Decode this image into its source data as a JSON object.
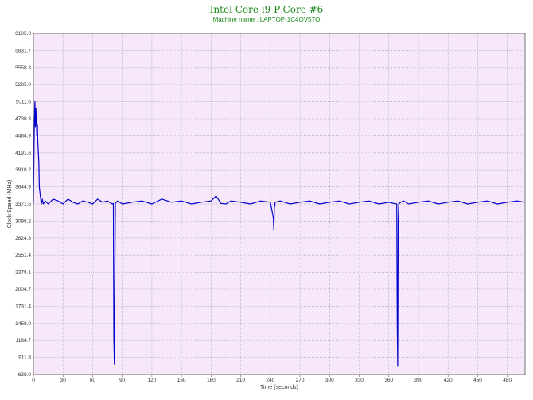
{
  "colors": {
    "plot_bg": "#f7e7fb",
    "grid": "#a0a0a0",
    "line": "#0000cc",
    "title": "#1a8a1a"
  },
  "chart_data": {
    "type": "line",
    "title": "Intel Core i9 P-Core #6",
    "subtitle": "Machine name : LAPTOP-1C4OV5TO",
    "xlabel": "Time (seconds)",
    "ylabel": "Clock Speed (MHz)",
    "xlim": [
      0,
      498
    ],
    "ylim": [
      638.0,
      6105.0
    ],
    "grid": true,
    "legend": "none",
    "x_ticks": [
      "0",
      "30",
      "60",
      "90",
      "120",
      "150",
      "180",
      "210",
      "240",
      "270",
      "300",
      "330",
      "360",
      "390",
      "420",
      "450",
      "480"
    ],
    "y_ticks": [
      "638.0",
      "911.3",
      "1184.7",
      "1458.0",
      "1731.4",
      "2004.7",
      "2278.1",
      "2551.4",
      "2824.8",
      "3098.2",
      "3371.5",
      "3644.9",
      "3918.2",
      "4191.6",
      "4464.9",
      "4738.3",
      "5011.6",
      "5285.0",
      "5558.3",
      "5831.7",
      "6105.0"
    ],
    "series": [
      {
        "values_desc": "clock speed over time",
        "x": [
          0,
          1,
          1.5,
          2,
          2.5,
          3,
          3.5,
          4,
          4.5,
          5,
          5.5,
          6,
          7,
          8,
          9,
          10,
          12,
          15,
          20,
          25,
          30,
          35,
          40,
          45,
          50,
          55,
          60,
          65,
          70,
          75,
          80,
          81,
          81.5,
          82,
          82.5,
          83,
          84,
          85,
          90,
          100,
          110,
          120,
          130,
          140,
          150,
          160,
          170,
          180,
          185,
          190,
          195,
          200,
          210,
          220,
          230,
          240,
          243,
          243.5,
          244,
          245,
          250,
          260,
          270,
          280,
          290,
          300,
          310,
          320,
          330,
          340,
          350,
          360,
          365,
          368,
          368.5,
          369,
          369.5,
          370,
          372,
          375,
          380,
          390,
          400,
          410,
          420,
          430,
          440,
          450,
          460,
          470,
          480,
          490,
          498
        ],
        "values": [
          3371.5,
          4700,
          5011.6,
          4600,
          4900,
          4738.3,
          4464.9,
          4650,
          4350,
          4200,
          4050,
          3644.9,
          3500,
          3371.5,
          3450,
          3371.5,
          3420,
          3371.5,
          3450,
          3420,
          3371.5,
          3450,
          3400,
          3371.5,
          3420,
          3400,
          3371.5,
          3450,
          3400,
          3420,
          3371.5,
          3380,
          1200,
          800,
          2300,
          3380,
          3400,
          3420,
          3371.5,
          3400,
          3420,
          3371.5,
          3450,
          3400,
          3420,
          3371.5,
          3400,
          3420,
          3500,
          3380,
          3371.5,
          3420,
          3400,
          3371.5,
          3420,
          3400,
          3150,
          2950,
          3300,
          3400,
          3420,
          3371.5,
          3400,
          3420,
          3371.5,
          3400,
          3420,
          3371.5,
          3400,
          3420,
          3371.5,
          3400,
          3380,
          3371.5,
          1500,
          780,
          3100,
          3371.5,
          3400,
          3420,
          3371.5,
          3400,
          3420,
          3371.5,
          3400,
          3420,
          3371.5,
          3400,
          3420,
          3371.5,
          3400,
          3420,
          3400
        ]
      }
    ]
  }
}
